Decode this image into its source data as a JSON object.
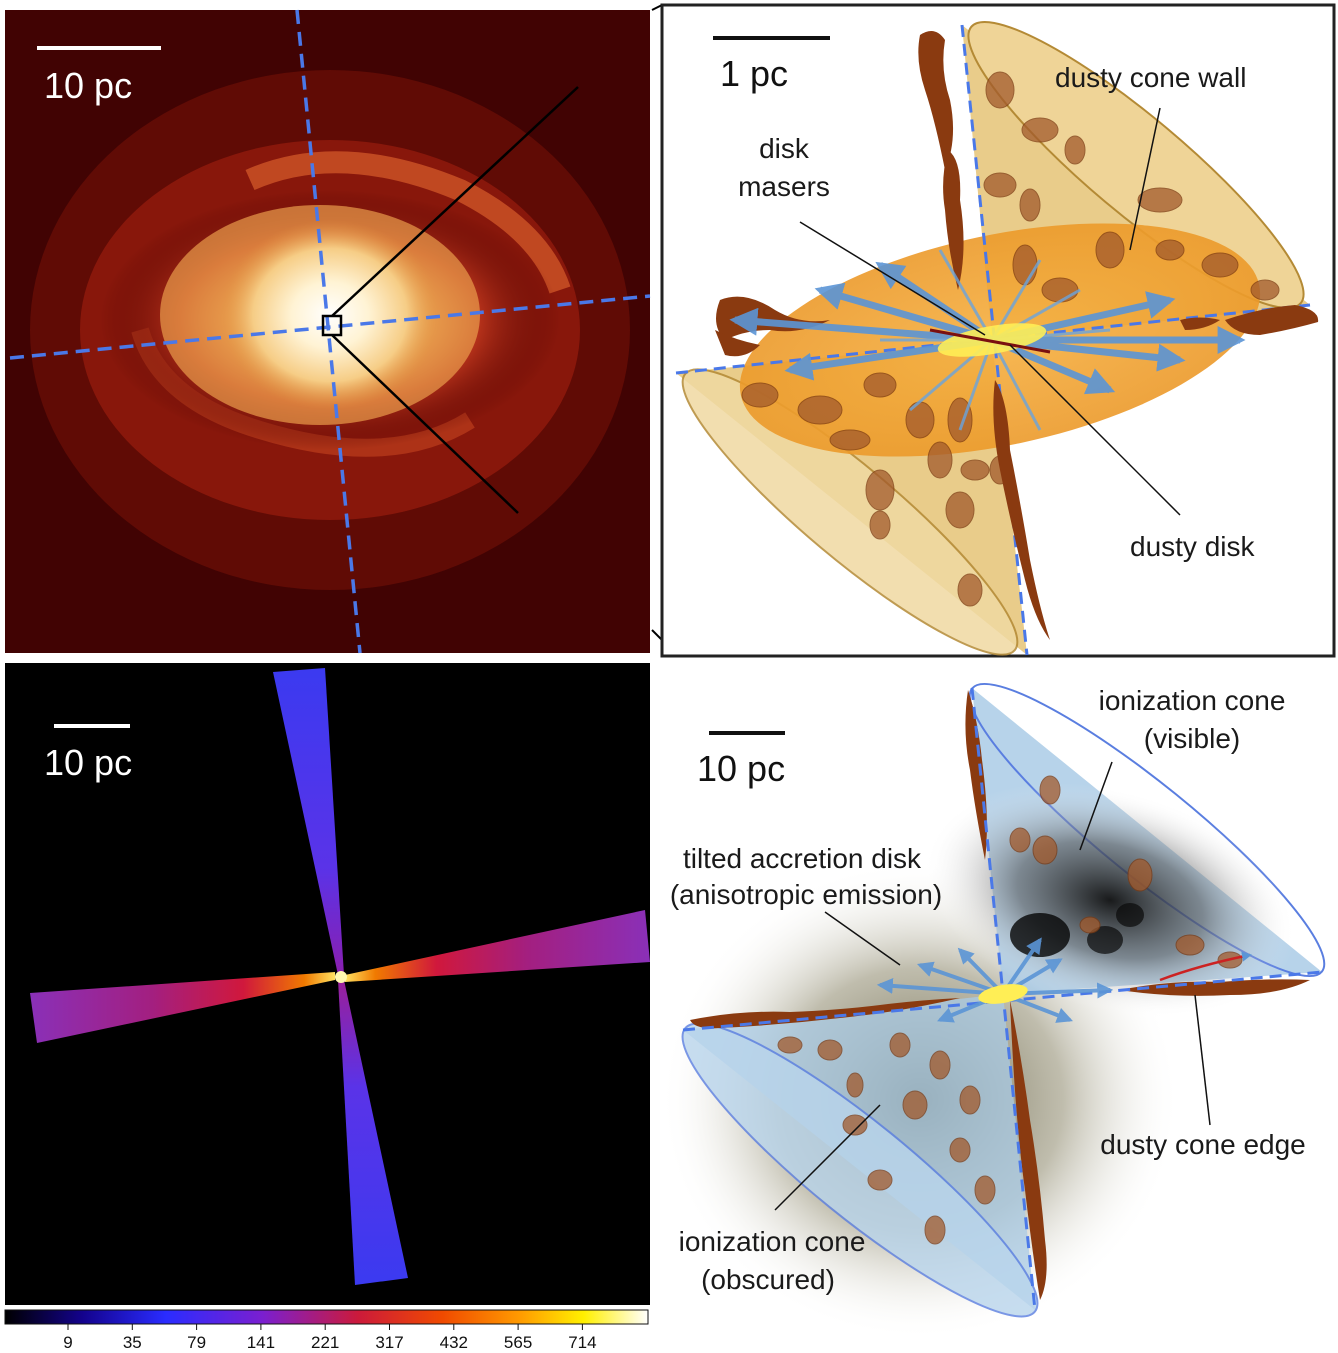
{
  "panels": {
    "top_left": {
      "scale_label": "10 pc"
    },
    "top_right": {
      "scale_label": "1 pc",
      "labels": {
        "dusty_cone_wall": "dusty cone wall",
        "disk_masers_1": "disk",
        "disk_masers_2": "masers",
        "dusty_disk": "dusty disk"
      }
    },
    "bottom_left": {
      "scale_label": "10 pc",
      "colorbar": {
        "ticks": [
          "9",
          "35",
          "79",
          "141",
          "221",
          "317",
          "432",
          "565",
          "714"
        ]
      }
    },
    "bottom_right": {
      "scale_label": "10 pc",
      "labels": {
        "ion_visible_1": "ionization cone",
        "ion_visible_2": "(visible)",
        "tilted_1": "tilted accretion disk",
        "tilted_2": "(anisotropic emission)",
        "dusty_cone_edge": "dusty cone edge",
        "ion_obscured_1": "ionization cone",
        "ion_obscured_2": "(obscured)"
      }
    }
  },
  "colors": {
    "axis_dash": "#4a78e8",
    "dust": "#8a3a10",
    "cone_gold": "#d9b25c",
    "cone_blue": "#aacbe6",
    "arrow_blue": "#5b95d6"
  }
}
